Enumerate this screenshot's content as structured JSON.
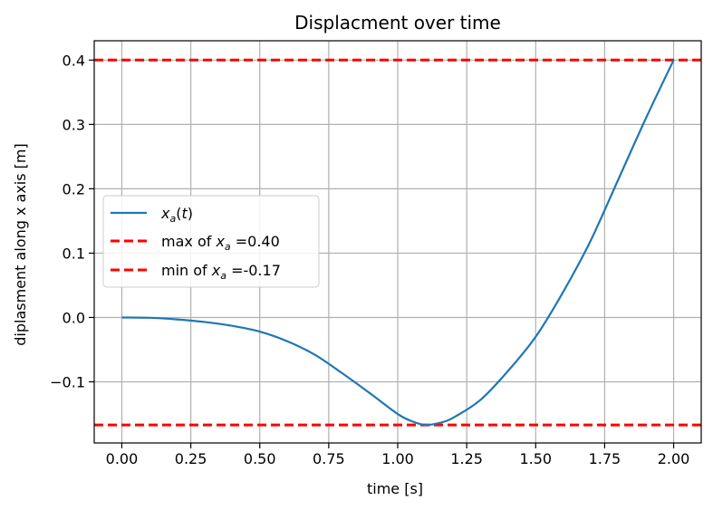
{
  "chart_data": {
    "type": "line",
    "title": "Displacment over time",
    "xlabel": "time [s]",
    "ylabel": "diplasment along x axis [m]",
    "xlim": [
      -0.1,
      2.1
    ],
    "ylim": [
      -0.195,
      0.43
    ],
    "grid": true,
    "legend_position": "center-left",
    "x_ticks": [
      "0.00",
      "0.25",
      "0.50",
      "0.75",
      "1.00",
      "1.25",
      "1.50",
      "1.75",
      "2.00"
    ],
    "y_ticks": [
      "−0.1",
      "0.0",
      "0.1",
      "0.2",
      "0.3",
      "0.4"
    ],
    "series": [
      {
        "name": "x_a(t)",
        "color": "#1f77b4",
        "x": [
          0.0,
          0.1,
          0.2,
          0.3,
          0.4,
          0.5,
          0.6,
          0.7,
          0.8,
          0.9,
          1.0,
          1.05,
          1.1,
          1.15,
          1.2,
          1.3,
          1.4,
          1.5,
          1.6,
          1.7,
          1.8,
          1.9,
          2.0
        ],
        "y": [
          0.0,
          -0.0005,
          -0.003,
          -0.007,
          -0.013,
          -0.022,
          -0.037,
          -0.058,
          -0.087,
          -0.118,
          -0.15,
          -0.161,
          -0.167,
          -0.164,
          -0.156,
          -0.128,
          -0.083,
          -0.03,
          0.04,
          0.12,
          0.215,
          0.31,
          0.4
        ]
      }
    ],
    "hlines": [
      {
        "value": 0.4,
        "label": "max of x_a =0.40",
        "legend_prefix": "max of ",
        "legend_value": " =0.40",
        "color": "#ff0000",
        "style": "dashed"
      },
      {
        "value": -0.167,
        "label": "min of x_a =-0.17",
        "legend_prefix": "min of ",
        "legend_value": " =-0.17",
        "color": "#ff0000",
        "style": "dashed"
      }
    ]
  }
}
